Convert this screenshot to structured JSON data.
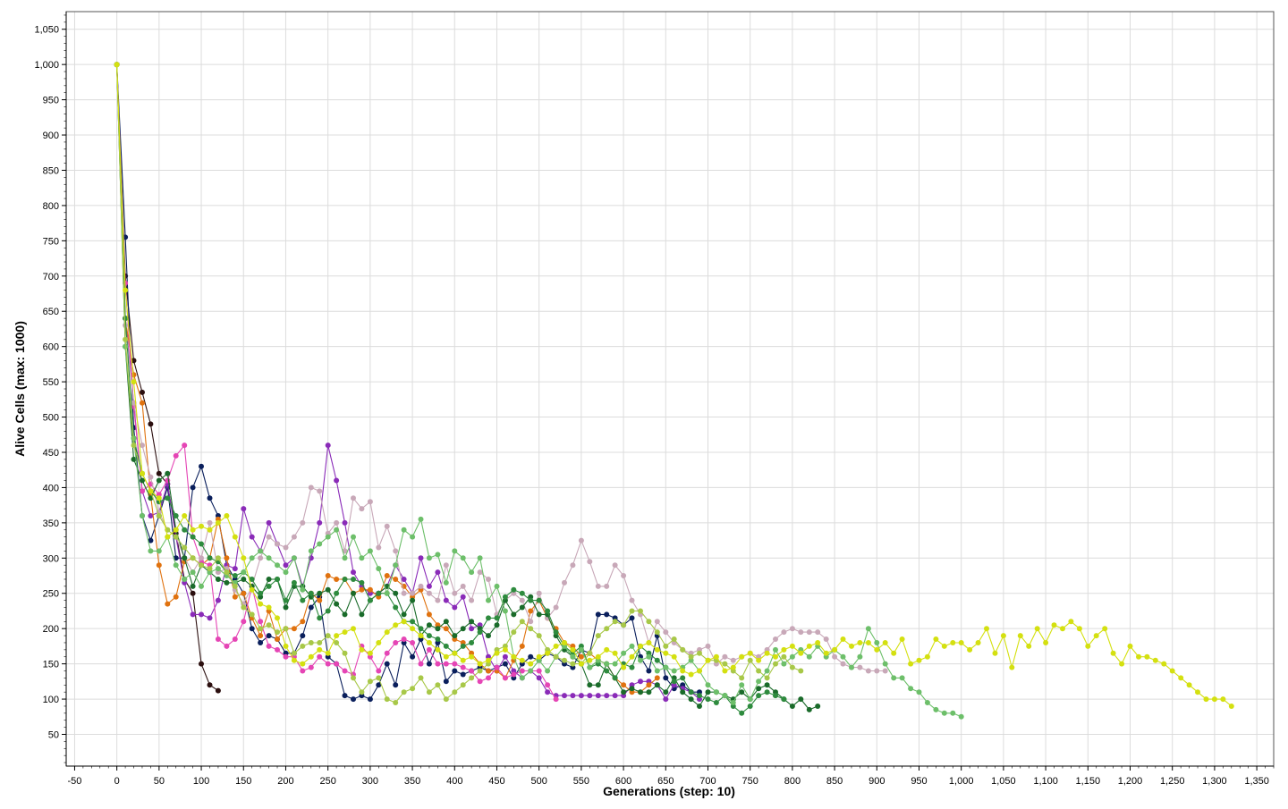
{
  "chart_data": {
    "type": "line",
    "title": "",
    "xlabel": "Generations (step: 10)",
    "ylabel": "Alive Cells (max: 1000)",
    "xlim": [
      -60,
      1370
    ],
    "ylim": [
      5,
      1075
    ],
    "grid": true,
    "legend": "none",
    "x_ticks": [
      -50,
      0,
      50,
      100,
      150,
      200,
      250,
      300,
      350,
      400,
      450,
      500,
      550,
      600,
      650,
      700,
      750,
      800,
      850,
      900,
      950,
      1000,
      1050,
      1100,
      1150,
      1200,
      1250,
      1300,
      1350
    ],
    "x_tick_labels": [
      "-50",
      "0",
      "50",
      "100",
      "150",
      "200",
      "250",
      "300",
      "350",
      "400",
      "450",
      "500",
      "550",
      "600",
      "650",
      "700",
      "750",
      "800",
      "850",
      "900",
      "950",
      "1,000",
      "1,050",
      "1,100",
      "1,150",
      "1,200",
      "1,250",
      "1,300",
      "1,350"
    ],
    "y_ticks": [
      50,
      100,
      150,
      200,
      250,
      300,
      350,
      400,
      450,
      500,
      550,
      600,
      650,
      700,
      750,
      800,
      850,
      900,
      950,
      1000,
      1050
    ],
    "y_tick_labels": [
      "50",
      "100",
      "150",
      "200",
      "250",
      "300",
      "350",
      "400",
      "450",
      "500",
      "550",
      "600",
      "650",
      "700",
      "750",
      "800",
      "850",
      "900",
      "950",
      "1,000",
      "1,050"
    ],
    "x_step": 10,
    "series": [
      {
        "color": "#2b0f0f",
        "x_start": 0,
        "values": [
          1000,
          700,
          580,
          535,
          490,
          420,
          405,
          335,
          270,
          250,
          150,
          120,
          112
        ]
      },
      {
        "color": "#0a1f5c",
        "x_start": 0,
        "values": [
          1000,
          755,
          485,
          360,
          325,
          360,
          400,
          300,
          300,
          400,
          430,
          385,
          360,
          290,
          270,
          250,
          200,
          180,
          190,
          185,
          165,
          165,
          190,
          230,
          245,
          160,
          150,
          105,
          100,
          105,
          100,
          120,
          150,
          120,
          180,
          160,
          185,
          150,
          180,
          125,
          140,
          135,
          140,
          145,
          140,
          145,
          150,
          130,
          150,
          160,
          155,
          165,
          160,
          150,
          145,
          170,
          165,
          220,
          220,
          215,
          205,
          215,
          160,
          140,
          190,
          130,
          115,
          120,
          110,
          110
        ]
      },
      {
        "color": "#8a2bb8",
        "x_start": 0,
        "values": [
          1000,
          640,
          520,
          395,
          360,
          365,
          405,
          330,
          265,
          220,
          220,
          215,
          240,
          290,
          285,
          370,
          330,
          310,
          350,
          320,
          290,
          300,
          260,
          300,
          350,
          460,
          410,
          350,
          280,
          260,
          250,
          250,
          260,
          290,
          270,
          250,
          300,
          260,
          280,
          240,
          230,
          245,
          200,
          205,
          160,
          140,
          160,
          140,
          130,
          140,
          130,
          110,
          105,
          105,
          105,
          105,
          105,
          105,
          105,
          105,
          105,
          120,
          125,
          125,
          120,
          100,
          120,
          115,
          110,
          100
        ]
      },
      {
        "color": "#e0720f",
        "x_start": 0,
        "values": [
          1000,
          640,
          560,
          520,
          390,
          290,
          235,
          245,
          295,
          300,
          290,
          300,
          355,
          300,
          245,
          250,
          215,
          190,
          225,
          185,
          200,
          200,
          210,
          250,
          240,
          275,
          270,
          270,
          250,
          255,
          255,
          245,
          275,
          270,
          260,
          245,
          255,
          220,
          205,
          200,
          185,
          180,
          165,
          150,
          140,
          140,
          130,
          155,
          175,
          225,
          240,
          215,
          200,
          180,
          175,
          160,
          165,
          155,
          150,
          130,
          120,
          110,
          110,
          120,
          130
        ]
      },
      {
        "color": "#e545b5",
        "x_start": 0,
        "values": [
          1000,
          690,
          515,
          395,
          405,
          390,
          410,
          445,
          460,
          330,
          295,
          290,
          185,
          175,
          185,
          210,
          260,
          210,
          175,
          170,
          160,
          160,
          140,
          145,
          160,
          150,
          150,
          140,
          135,
          175,
          160,
          140,
          165,
          180,
          185,
          180,
          150,
          170,
          150,
          150,
          150,
          145,
          140,
          125,
          130,
          145,
          130,
          135,
          140,
          140,
          140,
          120,
          100
        ]
      },
      {
        "color": "#c8a8b8",
        "x_start": 0,
        "values": [
          1000,
          630,
          520,
          460,
          415,
          365,
          340,
          330,
          300,
          280,
          300,
          350,
          280,
          285,
          255,
          235,
          260,
          300,
          330,
          320,
          315,
          330,
          350,
          400,
          395,
          335,
          350,
          310,
          385,
          370,
          380,
          315,
          345,
          310,
          250,
          250,
          260,
          250,
          240,
          290,
          250,
          260,
          240,
          280,
          270,
          220,
          240,
          250,
          240,
          210,
          250,
          215,
          230,
          265,
          290,
          325,
          295,
          260,
          260,
          290,
          275,
          240,
          220,
          180,
          210,
          195,
          180,
          170,
          165,
          170,
          175,
          150,
          160,
          155,
          160,
          165,
          160,
          170,
          185,
          195,
          200,
          195,
          195,
          195,
          185,
          160,
          150,
          145,
          145,
          140,
          140,
          140
        ]
      },
      {
        "color": "#1a6b2a",
        "x_start": 0,
        "values": [
          1000,
          600,
          440,
          410,
          385,
          410,
          420,
          340,
          300,
          260,
          290,
          280,
          270,
          265,
          265,
          270,
          260,
          245,
          270,
          270,
          230,
          260,
          260,
          245,
          250,
          255,
          235,
          220,
          250,
          220,
          240,
          250,
          260,
          250,
          220,
          240,
          190,
          205,
          200,
          210,
          190,
          200,
          210,
          200,
          190,
          205,
          240,
          220,
          230,
          245,
          220,
          220,
          190,
          170,
          160,
          150,
          120,
          120,
          150,
          130,
          110,
          115,
          110,
          110,
          120,
          110,
          130,
          110,
          100,
          90,
          110,
          110,
          105,
          100,
          110,
          100,
          115,
          120,
          110,
          100,
          90,
          100,
          85,
          90
        ]
      },
      {
        "color": "#2e8b3e",
        "x_start": 0,
        "values": [
          1000,
          640,
          470,
          420,
          395,
          380,
          385,
          360,
          340,
          330,
          320,
          300,
          295,
          280,
          275,
          280,
          270,
          250,
          260,
          270,
          240,
          265,
          240,
          250,
          215,
          225,
          250,
          270,
          270,
          265,
          240,
          250,
          250,
          230,
          210,
          210,
          200,
          190,
          185,
          175,
          165,
          175,
          180,
          195,
          215,
          215,
          245,
          255,
          250,
          240,
          240,
          225,
          195,
          175,
          165,
          175,
          145,
          150,
          140,
          130,
          150,
          145,
          175,
          165,
          155,
          145,
          125,
          130,
          110,
          105,
          100,
          95,
          105,
          90,
          80,
          90,
          105,
          110,
          105,
          100
        ]
      },
      {
        "color": "#6dbf6a",
        "x_start": 0,
        "values": [
          1000,
          600,
          470,
          360,
          310,
          310,
          330,
          290,
          270,
          280,
          260,
          280,
          285,
          275,
          265,
          280,
          300,
          310,
          300,
          290,
          280,
          300,
          255,
          310,
          320,
          330,
          340,
          300,
          330,
          300,
          310,
          285,
          250,
          290,
          340,
          330,
          355,
          300,
          305,
          265,
          310,
          300,
          280,
          300,
          240,
          260,
          225,
          160,
          130,
          140,
          155,
          140,
          160,
          175,
          160,
          170,
          145,
          155,
          150,
          150,
          165,
          175,
          155,
          160,
          140,
          145,
          140,
          145,
          155,
          140,
          120,
          110,
          105,
          95,
          120,
          100,
          125,
          140,
          170,
          150,
          160,
          170,
          160,
          175,
          160,
          170,
          160,
          145,
          160,
          200,
          180,
          150,
          130,
          130,
          115,
          110,
          95,
          85,
          80,
          80,
          75
        ]
      },
      {
        "color": "#a8c848",
        "x_start": 0,
        "values": [
          1000,
          610,
          460,
          420,
          395,
          360,
          340,
          330,
          315,
          300,
          290,
          285,
          300,
          280,
          260,
          230,
          220,
          200,
          205,
          195,
          200,
          165,
          175,
          180,
          180,
          190,
          180,
          165,
          130,
          110,
          125,
          130,
          100,
          95,
          110,
          115,
          130,
          110,
          120,
          100,
          110,
          120,
          130,
          140,
          150,
          170,
          175,
          195,
          210,
          200,
          190,
          170,
          160,
          155,
          150,
          150,
          165,
          190,
          200,
          210,
          205,
          225,
          225,
          210,
          195,
          175,
          185,
          170,
          160,
          165,
          155,
          155,
          150,
          140,
          130,
          155,
          140,
          130,
          150,
          160,
          145,
          140
        ]
      },
      {
        "color": "#d4e010",
        "x_start": 0,
        "values": [
          1000,
          680,
          550,
          420,
          395,
          385,
          330,
          340,
          360,
          340,
          345,
          340,
          350,
          360,
          330,
          300,
          255,
          235,
          230,
          215,
          175,
          155,
          150,
          160,
          170,
          165,
          190,
          195,
          200,
          170,
          165,
          180,
          195,
          205,
          210,
          200,
          190,
          180,
          170,
          160,
          165,
          155,
          160,
          150,
          155,
          165,
          170,
          160,
          155,
          150,
          160,
          165,
          175,
          180,
          170,
          150,
          155,
          160,
          170,
          165,
          145,
          160,
          175,
          180,
          170,
          165,
          160,
          140,
          135,
          140,
          155,
          160,
          140,
          145,
          160,
          165,
          155,
          165,
          160,
          170,
          175,
          165,
          175,
          180,
          165,
          170,
          185,
          175,
          180,
          180,
          170,
          180,
          165,
          185,
          150,
          155,
          160,
          185,
          175,
          180,
          180,
          170,
          180,
          200,
          165,
          190,
          145,
          190,
          175,
          200,
          180,
          205,
          200,
          210,
          200,
          175,
          190,
          200,
          165,
          150,
          175,
          160,
          160,
          155,
          150,
          140,
          130,
          120,
          110,
          100,
          100,
          100,
          90
        ]
      }
    ]
  }
}
